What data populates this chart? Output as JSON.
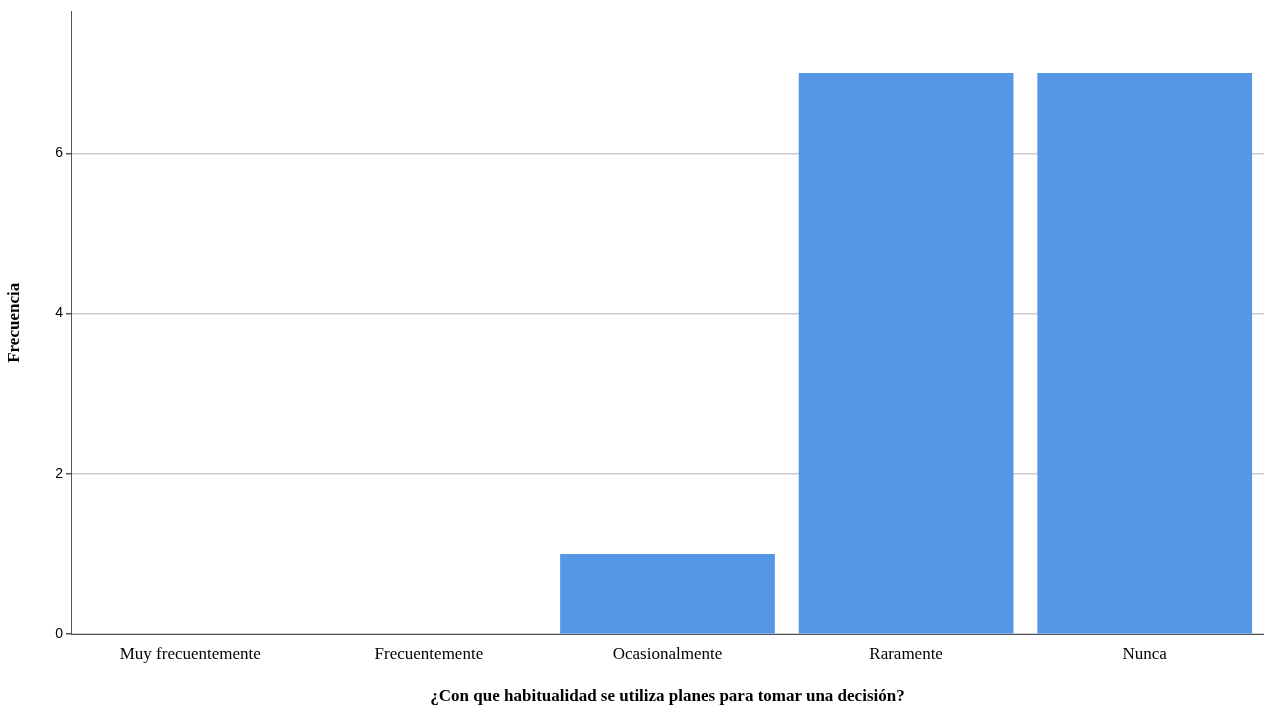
{
  "chart_data": {
    "type": "bar",
    "xlabel": "¿Con que habitualidad se utiliza planes para tomar una decisión?",
    "ylabel": "Frecuencia",
    "categories": [
      "Muy frecuentemente",
      "Frecuentemente",
      "Ocasionalmente",
      "Raramente",
      "Nunca"
    ],
    "values": [
      0,
      0,
      1,
      7,
      7
    ],
    "color": "#5596e6",
    "ylim": [
      0,
      7.77
    ],
    "yticks": [
      0,
      2,
      4,
      6
    ],
    "grid": "y",
    "legend": false
  }
}
